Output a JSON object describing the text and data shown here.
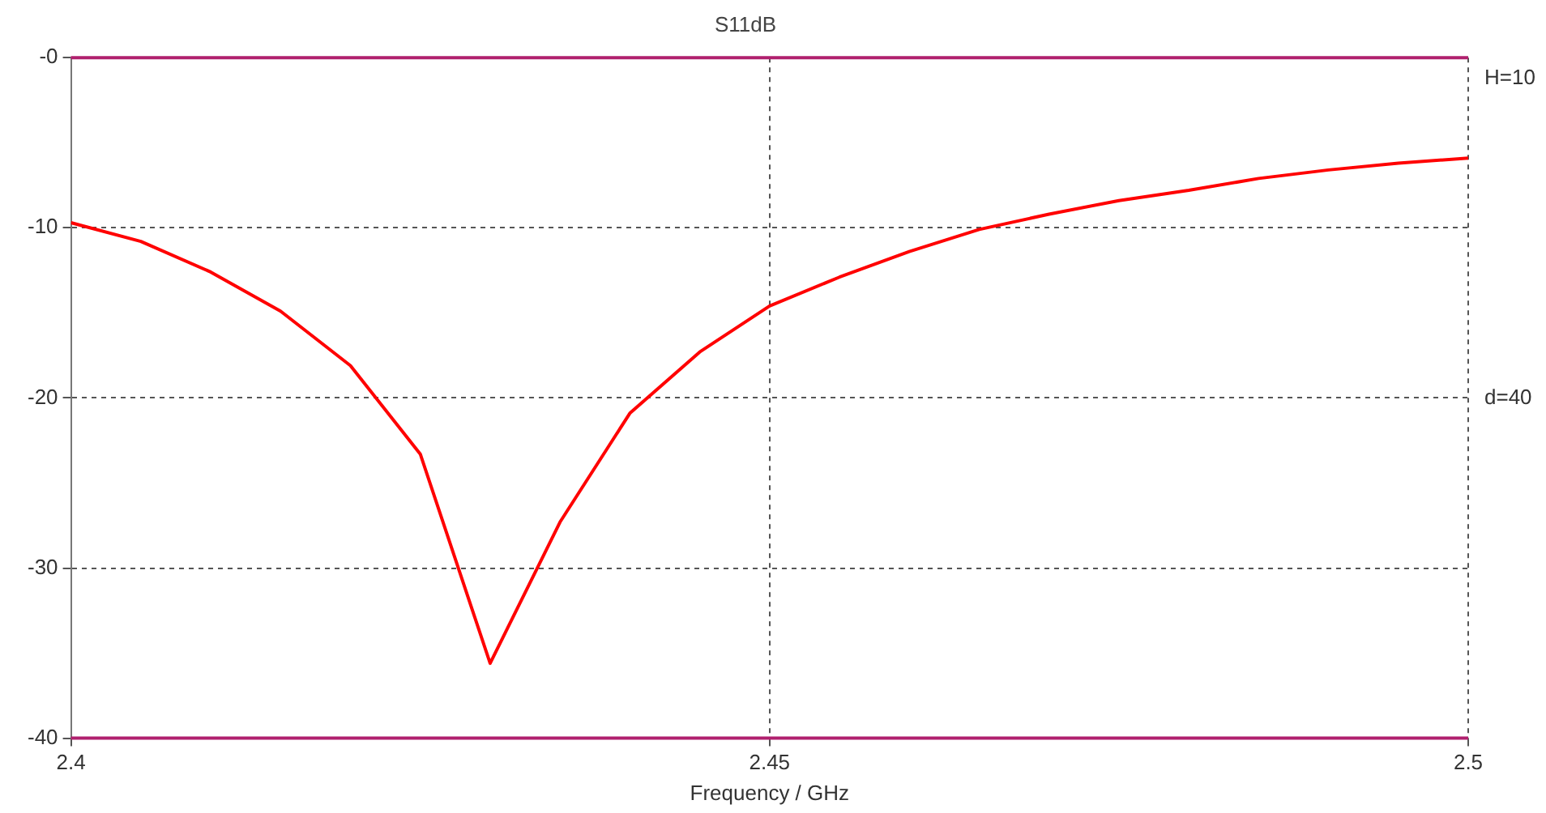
{
  "chart_data": {
    "type": "line",
    "title": "S11dB",
    "xlabel": "Frequency / GHz",
    "x": [
      2.4,
      2.405,
      2.41,
      2.415,
      2.42,
      2.425,
      2.43,
      2.435,
      2.44,
      2.445,
      2.45,
      2.455,
      2.46,
      2.465,
      2.47,
      2.475,
      2.48,
      2.485,
      2.49,
      2.495,
      2.5
    ],
    "series": [
      {
        "color": "#ff0000",
        "values": [
          -9.7,
          -10.8,
          -12.6,
          -14.9,
          -18.1,
          -23.3,
          -35.6,
          -27.3,
          -20.9,
          -17.3,
          -14.6,
          -12.9,
          -11.4,
          -10.1,
          -9.2,
          -8.4,
          -7.8,
          -7.1,
          -6.6,
          -6.2,
          -5.9
        ]
      }
    ],
    "xlim": [
      2.4,
      2.5
    ],
    "xticks": [
      2.4,
      2.45,
      2.5
    ],
    "ylim": [
      -40,
      0
    ],
    "yticks": [
      -40,
      -30,
      -20,
      -10,
      {
        "value": 0,
        "label": "-0"
      }
    ],
    "ref_lines": [
      {
        "axis": "y",
        "value": 0,
        "color": "#b0206e"
      },
      {
        "axis": "y",
        "value": -40,
        "color": "#b0206e"
      }
    ],
    "annotations": [
      "H=10",
      "d=40"
    ],
    "grid": true,
    "legend": false,
    "marker": "none",
    "line_style": "solid"
  }
}
